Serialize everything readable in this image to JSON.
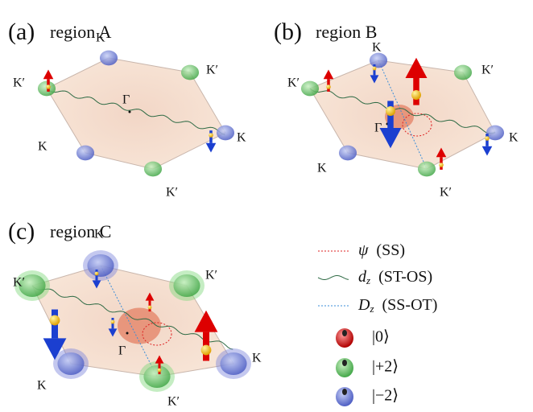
{
  "panels": [
    {
      "label": "(a)",
      "title": "region A",
      "points": [
        "K",
        "K′",
        "K′",
        "Γ",
        "K",
        "K",
        "K′"
      ]
    },
    {
      "label": "(b)",
      "title": "region B",
      "points": [
        "K",
        "K′",
        "K′",
        "Γ",
        "K",
        "K",
        "K′"
      ]
    },
    {
      "label": "(c)",
      "title": "region C",
      "points": [
        "K",
        "K′",
        "K′",
        "Γ",
        "K",
        "K",
        "K′"
      ]
    }
  ],
  "legend": {
    "lines": [
      {
        "symbol": "ψ",
        "text": "(SS)"
      },
      {
        "symbol": "d",
        "sub": "z",
        "text": "(ST-OS)"
      },
      {
        "symbol": "D",
        "sub": "z",
        "text": "(SS-OT)"
      }
    ],
    "states": [
      "|0⟩",
      "|+2⟩",
      "|−2⟩"
    ]
  }
}
